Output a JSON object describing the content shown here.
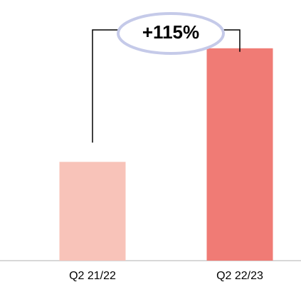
{
  "chart_data": {
    "type": "bar",
    "categories": [
      "Q2 21/22",
      "Q2 22/23"
    ],
    "values": [
      100,
      215
    ],
    "colors": [
      "#f8c3b9",
      "#f07b75"
    ],
    "ylim": [
      0,
      230
    ],
    "annotation": "+115%"
  }
}
